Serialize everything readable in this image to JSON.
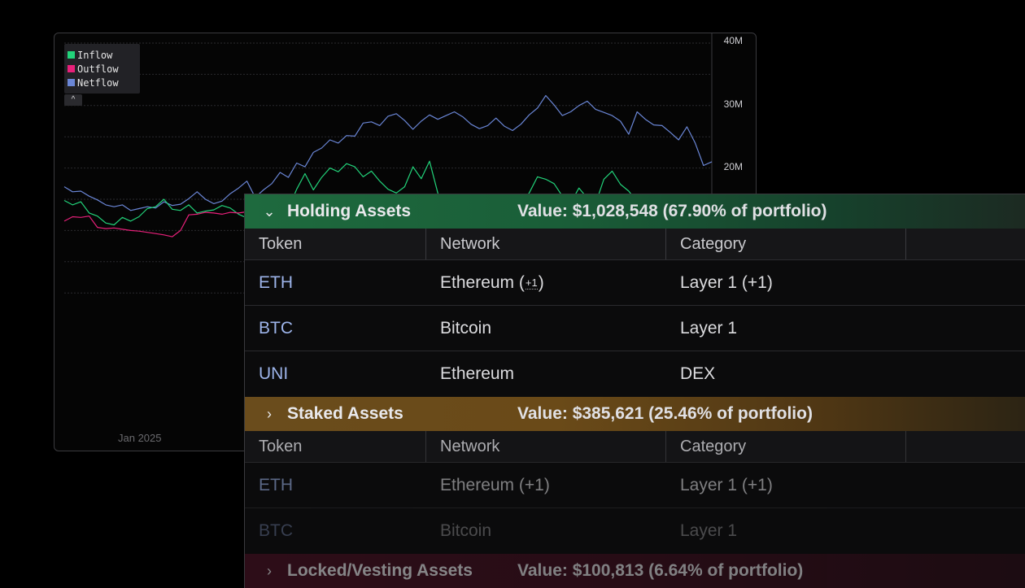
{
  "chart": {
    "legend": [
      {
        "label": "Inflow",
        "color": "#22d37a"
      },
      {
        "label": "Outflow",
        "color": "#e8207a"
      },
      {
        "label": "Netflow",
        "color": "#6a86d6"
      }
    ],
    "y_ticks": [
      "40M",
      "30M",
      "20M"
    ],
    "x_ticks": [
      "Jan 2025"
    ],
    "toggle_icon": "chevron-up-icon"
  },
  "chart_data": {
    "type": "line",
    "ylim": [
      0,
      40000000
    ],
    "series": [
      {
        "name": "Netflow",
        "color": "#6a86d6",
        "values": [
          17,
          16.2,
          16.3,
          15.5,
          14.9,
          14.1,
          13.8,
          14.1,
          13.2,
          13.5,
          13.8,
          13.6,
          14.6,
          14,
          14.2,
          15.1,
          16.2,
          15,
          14.3,
          14.7,
          15.9,
          16.8,
          17.9,
          15.3,
          16.5,
          17.5,
          19.3,
          18.5,
          20.8,
          20.2,
          22.5,
          23.2,
          24.5,
          24,
          25.2,
          25.1,
          27.2,
          27.4,
          26.8,
          28.3,
          28.7,
          27.6,
          26.2,
          27.5,
          28.5,
          27.8,
          28.4,
          29,
          28.2,
          27,
          26.3,
          26.8,
          28,
          26.7,
          26,
          27,
          28.5,
          29.6,
          31.6,
          30.1,
          28.4,
          29,
          30,
          30.7,
          29.4,
          28.9,
          28.4,
          27.5,
          25.4,
          29,
          27.8,
          26.9,
          26.8,
          25.7,
          24.5,
          26.6,
          24,
          20.4,
          21
        ]
      },
      {
        "name": "Inflow",
        "color": "#22d37a",
        "values": [
          14.8,
          14.1,
          14.6,
          12.8,
          12.3,
          11.2,
          10.9,
          12.1,
          11.5,
          12.2,
          13.5,
          13.8,
          15,
          13.4,
          13.2,
          14.1,
          12.8,
          13.1,
          13.3,
          14,
          13.6,
          12.6,
          12,
          12.5,
          13,
          14.1,
          15.3,
          13.5,
          16.6,
          19.1,
          16.5,
          18.5,
          20,
          19.4,
          20.7,
          20.2,
          18.6,
          19.5,
          17.9,
          16.6,
          16,
          17,
          20.2,
          18.3,
          21.1,
          16,
          12.3,
          13.8,
          14.3,
          14.4,
          13.2,
          15.5,
          14.8,
          13.9,
          13.5,
          14.4,
          16,
          18.6,
          18.2,
          17.5,
          15.5,
          14.4,
          16.8,
          15.2,
          14.3,
          18.2,
          19.5,
          17.4,
          16.3,
          14.6,
          15.3,
          14,
          12.2,
          14.9,
          13.3,
          13.2,
          12.8,
          12.1,
          12.5
        ]
      },
      {
        "name": "Outflow",
        "color": "#e8207a",
        "values": [
          11.5,
          12.2,
          12.1,
          12.3,
          10.5,
          10.3,
          10.4,
          10.2,
          10,
          9.9,
          9.7,
          9.5,
          9.3,
          9,
          10,
          12.5,
          12.6,
          12.9,
          12.8,
          12.6,
          12.9,
          12.8,
          13,
          13.3,
          13.1,
          13.2,
          13.4,
          13,
          13.2,
          13.6,
          14,
          13.8,
          14.2,
          14,
          13.5,
          13,
          12.8,
          12.9,
          13.2,
          13.1,
          13.3,
          13.4,
          13.6,
          13.5,
          13.8,
          13.4,
          13.6,
          13.3,
          13.2,
          13.1,
          12.9,
          13,
          13.2,
          13,
          13.1,
          13.3,
          13.2,
          13.4,
          13.1,
          13.3,
          13.2,
          13,
          12.8,
          12.9,
          12.7,
          12.8,
          12.9,
          12.6,
          12.8,
          12.5,
          12.7,
          12.6,
          12.4,
          12.5,
          12.3,
          12.2,
          12.4,
          12.1,
          12
        ]
      }
    ]
  },
  "table": {
    "columns": [
      "Token",
      "Network",
      "Category"
    ],
    "groups": [
      {
        "name": "Holding Assets",
        "value": "Value: $1,028,548 (67.90% of portfolio)",
        "chevron": "chevron-down-icon",
        "rows": [
          {
            "token": "ETH",
            "network_pre": "Ethereum (",
            "network_badge": "+1",
            "network_post": ")",
            "category": "Layer 1 (+1)"
          },
          {
            "token": "BTC",
            "network": "Bitcoin",
            "category": "Layer 1"
          },
          {
            "token": "UNI",
            "network": "Ethereum",
            "category": "DEX"
          }
        ]
      },
      {
        "name": "Staked Assets",
        "value": "Value: $385,621 (25.46% of portfolio)",
        "chevron": "chevron-right-icon",
        "rows": [
          {
            "token": "ETH",
            "network": "Ethereum (+1)",
            "category": "Layer 1 (+1)"
          },
          {
            "token": "BTC",
            "network": "Bitcoin",
            "category": "Layer 1"
          }
        ]
      },
      {
        "name": "Locked/Vesting Assets",
        "value": "Value: $100,813 (6.64% of portfolio)",
        "chevron": "chevron-right-icon"
      }
    ]
  }
}
